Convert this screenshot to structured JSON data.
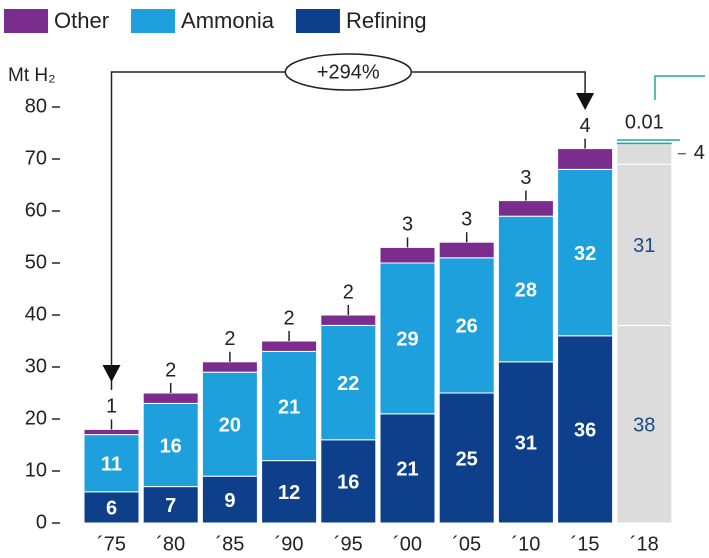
{
  "chart_data": {
    "type": "stacked_bar",
    "y_label": "Mt H₂",
    "categories": [
      "´75",
      "´80",
      "´85",
      "´90",
      "´95",
      "´00",
      "´05",
      "´10",
      "´15",
      "´18"
    ],
    "series": [
      {
        "name": "Refining",
        "color": "#0d3f8a",
        "values": [
          6,
          7,
          9,
          12,
          16,
          21,
          25,
          31,
          36,
          38
        ]
      },
      {
        "name": "Ammonia",
        "color": "#1ea0dc",
        "values": [
          11,
          16,
          20,
          21,
          22,
          29,
          26,
          28,
          32,
          31
        ]
      },
      {
        "name": "Other",
        "color": "#7b2d8e",
        "values": [
          1,
          2,
          2,
          2,
          2,
          3,
          3,
          3,
          4,
          4
        ]
      }
    ],
    "highlight_category": "´18",
    "highlight_color": "#dcdcdc",
    "highlight_text_color": "#1a4a8a",
    "extra_segment": {
      "value": 0.01,
      "color": "#1fa6a0"
    },
    "annotation": "+294%",
    "ylim": [
      0,
      80
    ],
    "yticks": [
      0,
      10,
      20,
      30,
      40,
      50,
      60,
      70,
      80
    ]
  }
}
